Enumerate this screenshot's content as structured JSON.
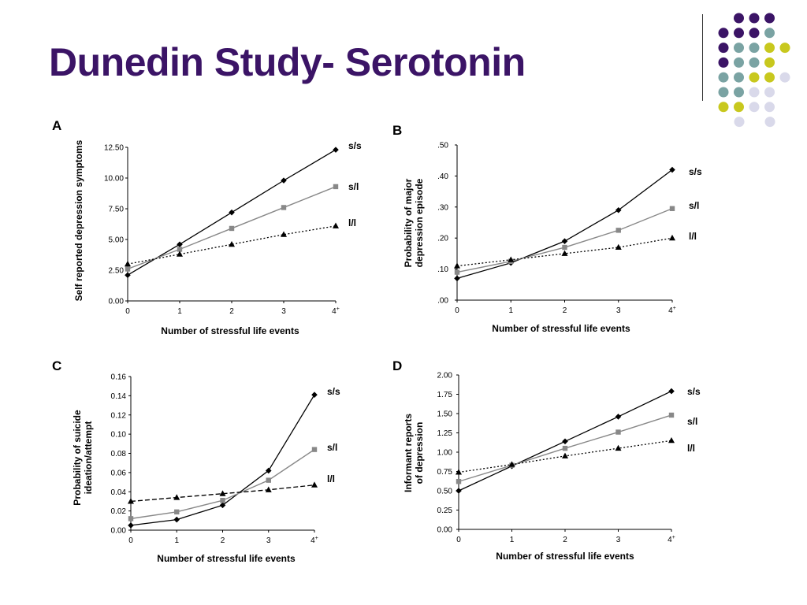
{
  "slide": {
    "title": "Dunedin Study- Serotonin"
  },
  "decor": {
    "dot_colors": {
      "purple": "#3b1466",
      "teal": "#7aa3a3",
      "yellow": "#c8c81e",
      "lavender": "#d9d9ea"
    }
  },
  "chart_data": [
    {
      "type": "line",
      "panel": "A",
      "xlabel": "Number of stressful life events",
      "ylabel": "Self reported depression symptoms",
      "categories": [
        "0",
        "1",
        "2",
        "3",
        "4+"
      ],
      "ylim": [
        0,
        12.5
      ],
      "yticks": [
        "0.00",
        "2.50",
        "5.00",
        "7.50",
        "10.00",
        "12.50"
      ],
      "series": [
        {
          "name": "s/s",
          "marker": "diamond",
          "color": "#000000",
          "dash": "solid",
          "values": [
            2.1,
            4.6,
            7.2,
            9.8,
            12.3
          ]
        },
        {
          "name": "s/l",
          "marker": "square",
          "color": "#888888",
          "dash": "solid",
          "values": [
            2.6,
            4.2,
            5.9,
            7.6,
            9.3
          ]
        },
        {
          "name": "l/l",
          "marker": "triangle",
          "color": "#000000",
          "dash": "dotted",
          "values": [
            3.0,
            3.8,
            4.6,
            5.4,
            6.1
          ]
        }
      ]
    },
    {
      "type": "line",
      "panel": "B",
      "xlabel": "Number of stressful life events",
      "ylabel": "Probability of major depression episode",
      "categories": [
        "0",
        "1",
        "2",
        "3",
        "4+"
      ],
      "ylim": [
        0,
        0.5
      ],
      "yticks": [
        ".00",
        ".10",
        ".20",
        ".30",
        ".40",
        ".50"
      ],
      "series": [
        {
          "name": "s/s",
          "marker": "diamond",
          "color": "#000000",
          "dash": "solid",
          "values": [
            0.07,
            0.12,
            0.19,
            0.29,
            0.42
          ]
        },
        {
          "name": "s/l",
          "marker": "square",
          "color": "#888888",
          "dash": "solid",
          "values": [
            0.09,
            0.125,
            0.17,
            0.225,
            0.295
          ]
        },
        {
          "name": "l/l",
          "marker": "triangle",
          "color": "#000000",
          "dash": "dotted",
          "values": [
            0.11,
            0.13,
            0.15,
            0.17,
            0.2
          ]
        }
      ]
    },
    {
      "type": "line",
      "panel": "C",
      "xlabel": "Number of stressful life events",
      "ylabel": "Probability of suicide ideation/attempt",
      "categories": [
        "0",
        "1",
        "2",
        "3",
        "4+"
      ],
      "ylim": [
        0,
        0.16
      ],
      "yticks": [
        "0.00",
        "0.02",
        "0.04",
        "0.06",
        "0.08",
        "0.10",
        "0.12",
        "0.14",
        "0.16"
      ],
      "series": [
        {
          "name": "s/s",
          "marker": "diamond",
          "color": "#000000",
          "dash": "solid",
          "values": [
            0.005,
            0.011,
            0.026,
            0.062,
            0.141
          ]
        },
        {
          "name": "s/l",
          "marker": "square",
          "color": "#888888",
          "dash": "solid",
          "values": [
            0.012,
            0.019,
            0.031,
            0.052,
            0.084
          ]
        },
        {
          "name": "l/l",
          "marker": "triangle",
          "color": "#000000",
          "dash": "dashed",
          "values": [
            0.03,
            0.034,
            0.038,
            0.042,
            0.047
          ]
        }
      ]
    },
    {
      "type": "line",
      "panel": "D",
      "xlabel": "Number of stressful life events",
      "ylabel": "Informant reports of depression",
      "categories": [
        "0",
        "1",
        "2",
        "3",
        "4+"
      ],
      "ylim": [
        0,
        2.0
      ],
      "yticks": [
        "0.00",
        "0.25",
        "0.50",
        "0.75",
        "1.00",
        "1.25",
        "1.50",
        "1.75",
        "2.00"
      ],
      "series": [
        {
          "name": "s/s",
          "marker": "diamond",
          "color": "#000000",
          "dash": "solid",
          "values": [
            0.5,
            0.82,
            1.14,
            1.46,
            1.79
          ]
        },
        {
          "name": "s/l",
          "marker": "square",
          "color": "#888888",
          "dash": "solid",
          "values": [
            0.62,
            0.83,
            1.05,
            1.26,
            1.48
          ]
        },
        {
          "name": "l/l",
          "marker": "triangle",
          "color": "#000000",
          "dash": "dotted",
          "values": [
            0.74,
            0.84,
            0.95,
            1.05,
            1.15
          ]
        }
      ]
    }
  ]
}
